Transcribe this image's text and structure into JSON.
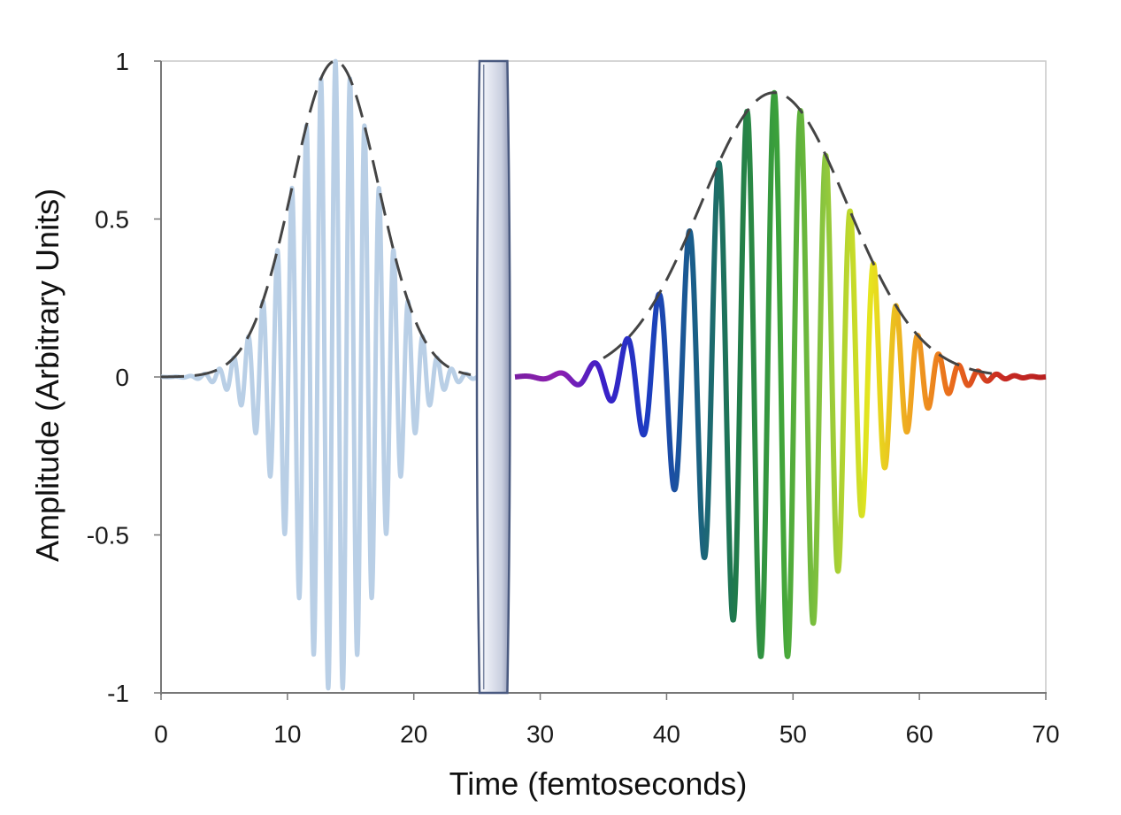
{
  "chart_data": {
    "type": "line",
    "title": "",
    "xlabel": "Time (femtoseconds)",
    "ylabel": "Amplitude (Arbitrary Units)",
    "xlim": [
      0,
      70
    ],
    "ylim": [
      -1,
      1
    ],
    "x_ticks": [
      0,
      10,
      20,
      30,
      40,
      50,
      60,
      70
    ],
    "x_tick_labels": [
      "0",
      "10",
      "20",
      "30",
      "40",
      "50",
      "60",
      "70"
    ],
    "y_ticks": [
      1,
      0.5,
      0,
      -0.5,
      -1
    ],
    "y_tick_labels": [
      "1",
      "0.5",
      "0",
      "-0.5",
      "-1"
    ],
    "grid": false,
    "series": [
      {
        "name": "input pulse",
        "kind": "wave",
        "center": 13.8,
        "sigma": 3.4,
        "amplitude": 1.0,
        "period": 1.15,
        "x_range": [
          0,
          25
        ],
        "color": "#b9cfe6"
      },
      {
        "name": "input pulse envelope",
        "kind": "envelope",
        "center": 13.8,
        "sigma": 3.4,
        "amplitude": 1.0,
        "x_range": [
          0,
          24.5
        ],
        "color": "#444444",
        "dashed": true
      },
      {
        "name": "chirped output pulse",
        "kind": "chirped-wave",
        "center": 48.5,
        "sigma": 5.8,
        "amplitude": 0.9,
        "period_start": 2.9,
        "period_end": 1.3,
        "x_range": [
          28,
          70
        ],
        "color_stops": [
          "#7a1fa2",
          "#8e1fb0",
          "#3a1fc8",
          "#1c3cc2",
          "#1a5d8c",
          "#1f7a4a",
          "#3ea43a",
          "#8cc63e",
          "#e6e61e",
          "#f0a020",
          "#e8641c",
          "#c82a22",
          "#b82020"
        ]
      },
      {
        "name": "chirped output pulse envelope",
        "kind": "envelope",
        "center": 48.5,
        "sigma": 5.8,
        "amplitude": 0.9,
        "x_range": [
          35,
          66
        ],
        "color": "#444444",
        "dashed": true
      }
    ],
    "annotations": [
      {
        "kind": "glass-slab",
        "x_range": [
          25.2,
          27.4
        ],
        "y_range": [
          -1,
          1
        ],
        "color": "#4a5a80"
      }
    ]
  }
}
